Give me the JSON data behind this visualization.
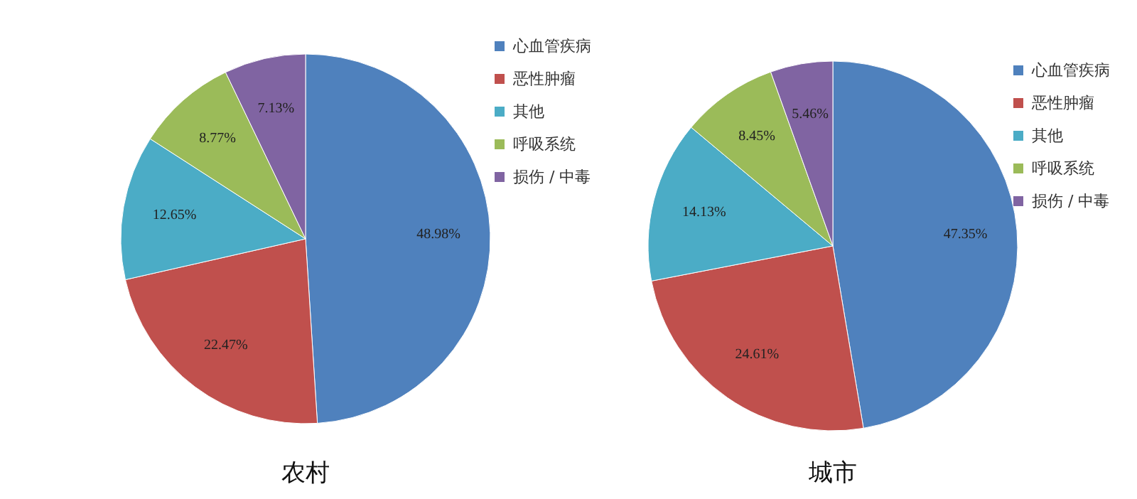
{
  "chart_data": [
    {
      "type": "pie",
      "title": "农村",
      "categories": [
        "心血管疾病",
        "恶性肿瘤",
        "其他",
        "呼吸系统",
        "损伤 / 中毒"
      ],
      "values": [
        48.98,
        22.47,
        12.65,
        8.77,
        7.13
      ],
      "colors": [
        "#4f81bd",
        "#c0504d",
        "#4bacc6",
        "#9bbb59",
        "#8064a2"
      ],
      "value_labels": [
        "48.98%",
        "22.47%",
        "12.65%",
        "8.77%",
        "7.13%"
      ],
      "legend": "right"
    },
    {
      "type": "pie",
      "title": "城市",
      "categories": [
        "心血管疾病",
        "恶性肿瘤",
        "其他",
        "呼吸系统",
        "损伤 / 中毒"
      ],
      "values": [
        47.35,
        24.61,
        14.13,
        8.45,
        5.46
      ],
      "colors": [
        "#4f81bd",
        "#c0504d",
        "#4bacc6",
        "#9bbb59",
        "#8064a2"
      ],
      "value_labels": [
        "47.35%",
        "24.61%",
        "14.13%",
        "8.45%",
        "5.46%"
      ],
      "legend": "right"
    }
  ]
}
